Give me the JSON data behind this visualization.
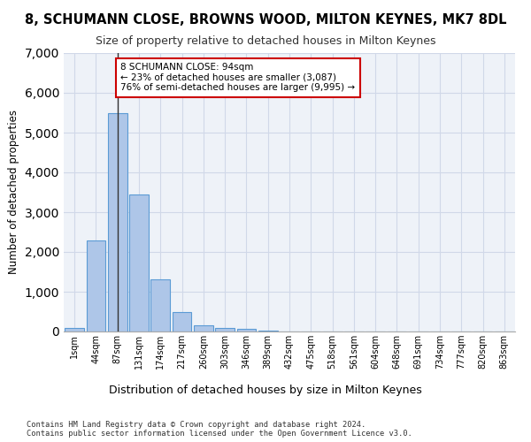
{
  "title": "8, SCHUMANN CLOSE, BROWNS WOOD, MILTON KEYNES, MK7 8DL",
  "subtitle": "Size of property relative to detached houses in Milton Keynes",
  "xlabel": "Distribution of detached houses by size in Milton Keynes",
  "ylabel": "Number of detached properties",
  "bar_color": "#aec6e8",
  "bar_edge_color": "#5b9bd5",
  "grid_color": "#d0d8e8",
  "background_color": "#eef2f8",
  "annotation_box_color": "#cc0000",
  "property_line_color": "#333333",
  "bin_labels": [
    "1sqm",
    "44sqm",
    "87sqm",
    "131sqm",
    "174sqm",
    "217sqm",
    "260sqm",
    "303sqm",
    "346sqm",
    "389sqm",
    "432sqm",
    "475sqm",
    "518sqm",
    "561sqm",
    "604sqm",
    "648sqm",
    "691sqm",
    "734sqm",
    "777sqm",
    "820sqm",
    "863sqm"
  ],
  "bar_values": [
    80,
    2280,
    5480,
    3440,
    1320,
    480,
    160,
    80,
    60,
    30,
    0,
    0,
    0,
    0,
    0,
    0,
    0,
    0,
    0,
    0,
    0
  ],
  "property_bin_index": 2,
  "annotation_text": "8 SCHUMANN CLOSE: 94sqm\n← 23% of detached houses are smaller (3,087)\n76% of semi-detached houses are larger (9,995) →",
  "ylim": [
    0,
    7000
  ],
  "yticks": [
    0,
    1000,
    2000,
    3000,
    4000,
    5000,
    6000,
    7000
  ],
  "footer_line1": "Contains HM Land Registry data © Crown copyright and database right 2024.",
  "footer_line2": "Contains public sector information licensed under the Open Government Licence v3.0."
}
